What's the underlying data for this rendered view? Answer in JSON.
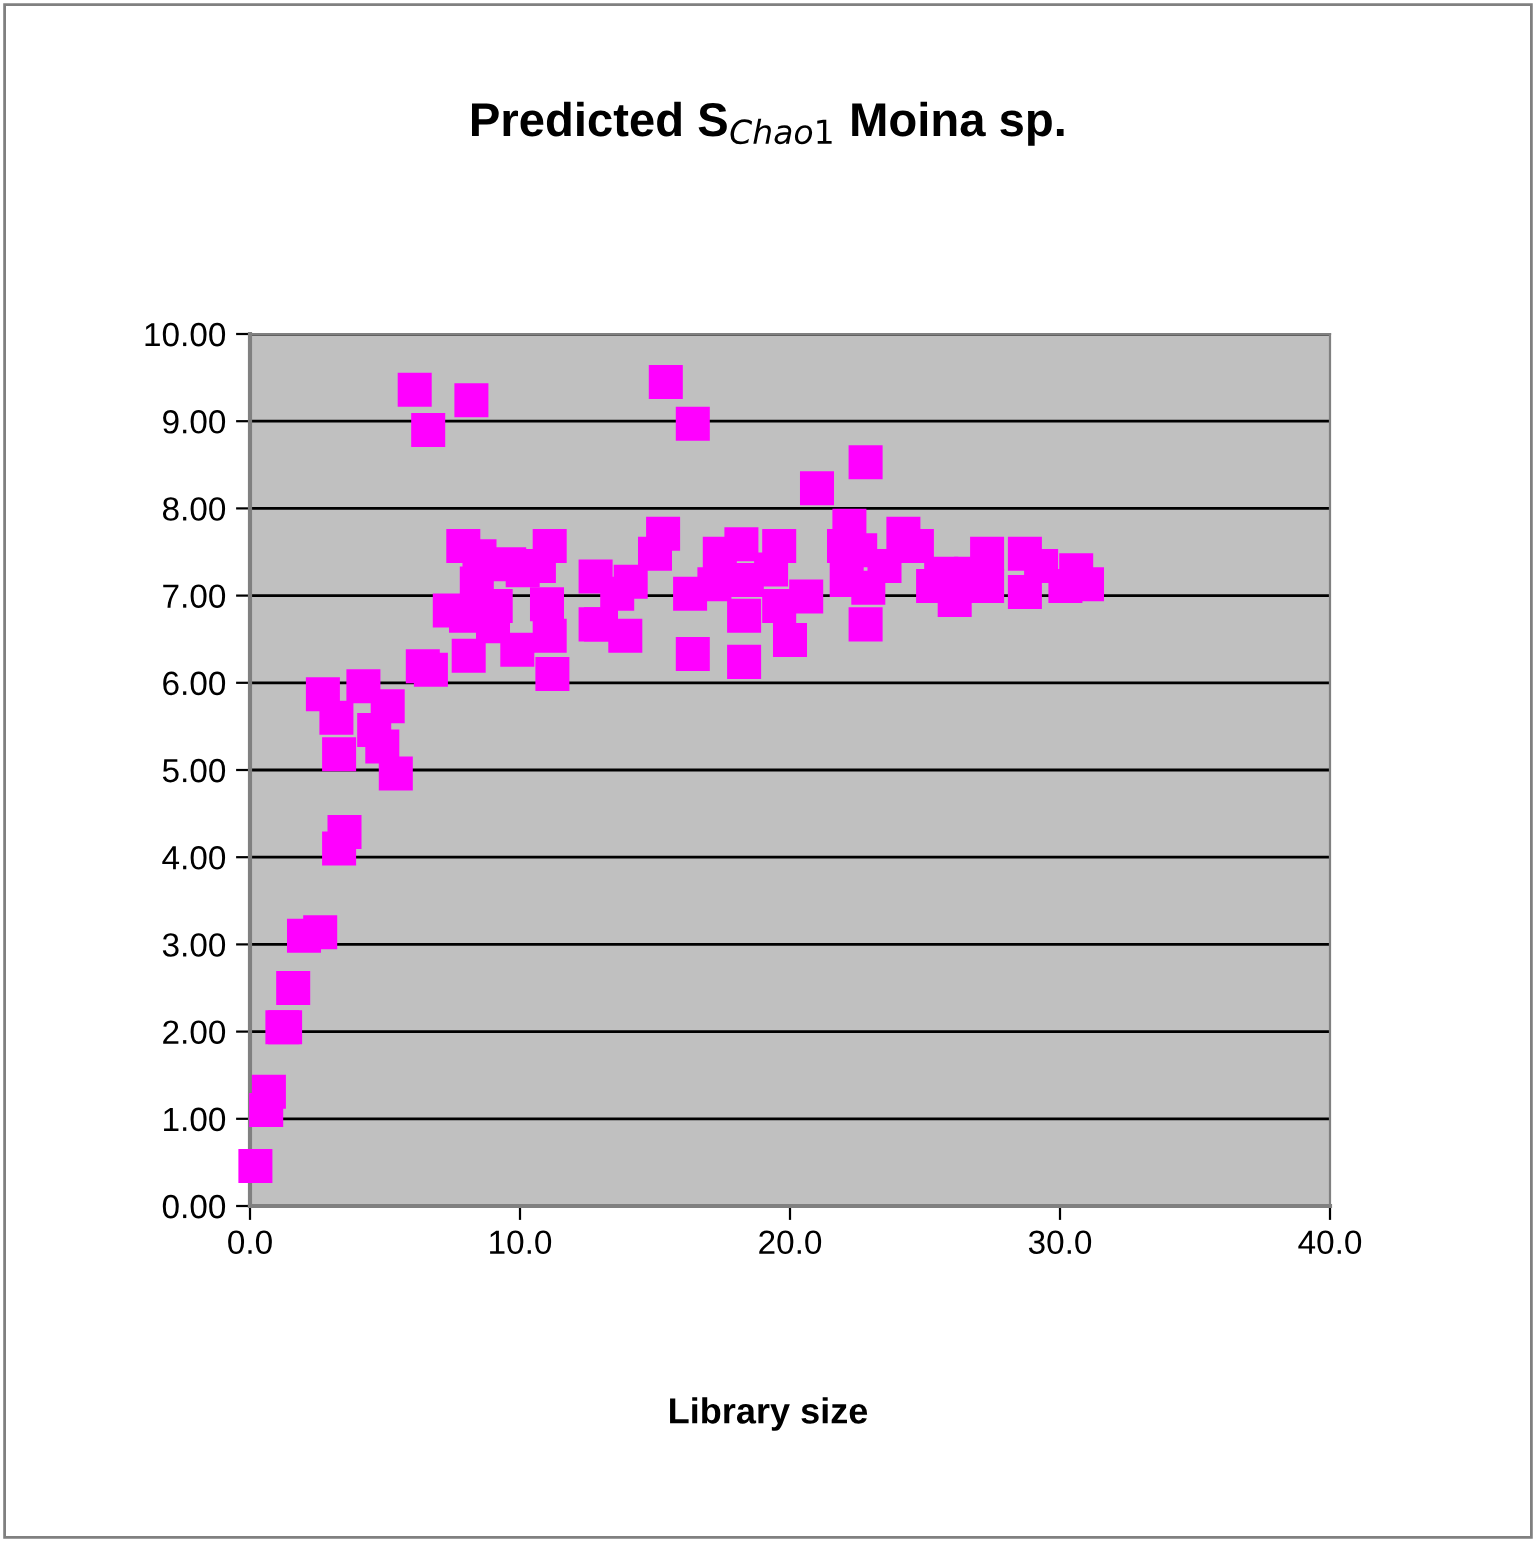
{
  "chart_data": {
    "type": "scatter",
    "title": "Predicted S$_{Chao1}$ Moina sp.",
    "xlabel": "Library size",
    "x": [
      0.2,
      0.6,
      0.7,
      1.2,
      1.3,
      1.6,
      2.0,
      2.6,
      3.3,
      3.5,
      2.7,
      3.2,
      3.3,
      4.2,
      4.6,
      4.9,
      5.1,
      5.4,
      6.1,
      6.6,
      8.2,
      6.4,
      6.7,
      7.4,
      7.9,
      8.0,
      8.1,
      8.4,
      8.5,
      9.0,
      9.1,
      9.6,
      9.9,
      10.1,
      10.7,
      11.0,
      11.1,
      11.1,
      11.2,
      12.8,
      12.8,
      13.0,
      13.6,
      13.9,
      14.1,
      15.0,
      15.3,
      15.4,
      16.3,
      16.4,
      16.4,
      17.2,
      17.4,
      18.2,
      18.3,
      18.3,
      18.4,
      19.3,
      19.6,
      19.6,
      20.0,
      20.6,
      21.0,
      22.0,
      22.1,
      22.2,
      22.6,
      22.8,
      22.8,
      22.9,
      23.5,
      24.2,
      24.7,
      25.3,
      25.6,
      26.1,
      26.7,
      27.3,
      27.3,
      28.7,
      28.7,
      29.3,
      30.2,
      30.6,
      31.0
    ],
    "values": [
      0.46,
      1.1,
      1.31,
      2.05,
      2.05,
      2.5,
      3.1,
      3.14,
      4.1,
      4.29,
      5.87,
      5.6,
      5.18,
      5.96,
      5.46,
      5.27,
      5.73,
      4.96,
      9.36,
      8.9,
      9.24,
      6.19,
      6.15,
      6.83,
      7.57,
      6.77,
      6.31,
      7.14,
      7.45,
      6.65,
      6.88,
      7.36,
      6.38,
      7.29,
      7.34,
      6.9,
      7.57,
      6.54,
      6.1,
      7.22,
      6.67,
      6.67,
      7.02,
      6.54,
      7.16,
      7.48,
      7.71,
      9.45,
      7.02,
      8.97,
      6.33,
      7.13,
      7.48,
      7.59,
      6.77,
      6.24,
      7.18,
      7.3,
      7.57,
      6.88,
      6.49,
      6.99,
      8.23,
      7.57,
      7.18,
      7.8,
      7.52,
      8.53,
      6.67,
      7.09,
      7.34,
      7.71,
      7.57,
      7.11,
      7.25,
      6.95,
      7.25,
      7.48,
      7.11,
      7.48,
      7.04,
      7.34,
      7.11,
      7.29,
      7.13
    ],
    "color": "#ff00ff",
    "marker": "square",
    "xlim": [
      0,
      40
    ],
    "xticks": [
      {
        "value": 0,
        "label": "0.0"
      },
      {
        "value": 10,
        "label": "10.0"
      },
      {
        "value": 20,
        "label": "20.0"
      },
      {
        "value": 30,
        "label": "30.0"
      },
      {
        "value": 40,
        "label": "40.0"
      }
    ],
    "ylim": [
      0,
      10
    ],
    "yticks": [
      {
        "value": 0,
        "label": "0.00"
      },
      {
        "value": 1,
        "label": "1.00"
      },
      {
        "value": 2,
        "label": "2.00"
      },
      {
        "value": 3,
        "label": "3.00"
      },
      {
        "value": 4,
        "label": "4.00"
      },
      {
        "value": 5,
        "label": "5.00"
      },
      {
        "value": 6,
        "label": "6.00"
      },
      {
        "value": 7,
        "label": "7.00"
      },
      {
        "value": 8,
        "label": "8.00"
      },
      {
        "value": 9,
        "label": "9.00"
      },
      {
        "value": 10,
        "label": "10.00"
      }
    ],
    "grid": "y"
  }
}
